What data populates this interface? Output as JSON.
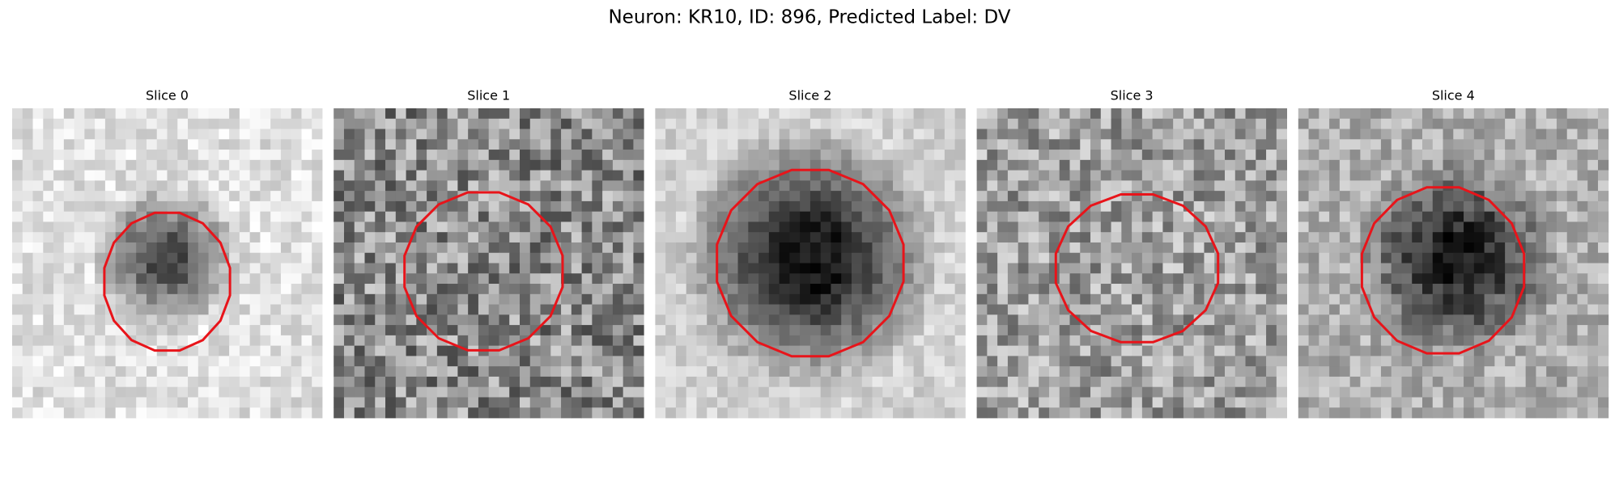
{
  "header": {
    "title": "Neuron: KR10, ID: 896, Predicted Label: DV"
  },
  "panels": [
    {
      "title": "Slice 0"
    },
    {
      "title": "Slice 1"
    },
    {
      "title": "Slice 2"
    },
    {
      "title": "Slice 3"
    },
    {
      "title": "Slice 4"
    }
  ]
}
